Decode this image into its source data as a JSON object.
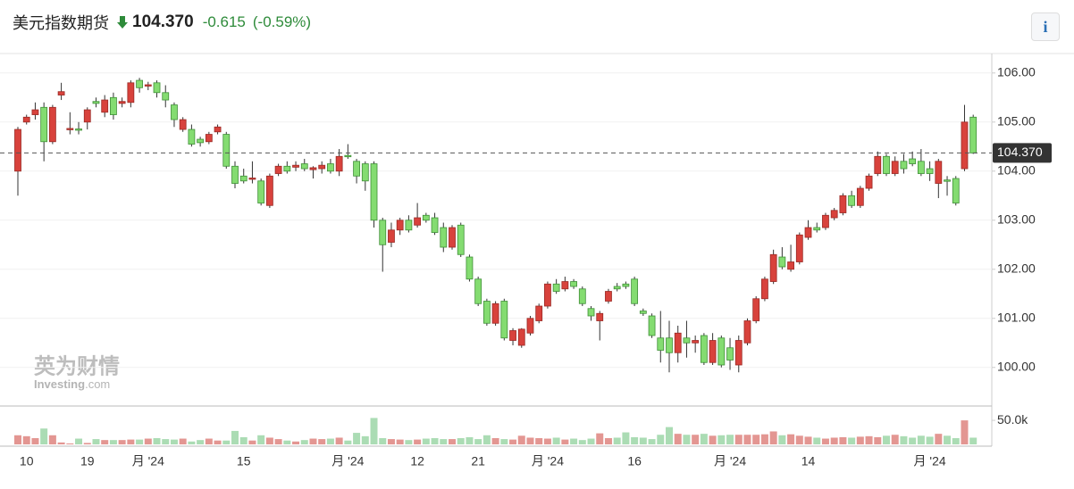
{
  "header": {
    "title": "美元指数期货",
    "price": "104.370",
    "change": "-0.615",
    "change_pct": "(-0.59%)",
    "info_button": "i"
  },
  "watermark": {
    "cn": "英为财情",
    "brand": "Investing",
    "suffix": ".com"
  },
  "chart_data": {
    "type": "candlestick",
    "colors": {
      "up": "#d8423c",
      "down": "#84dc71",
      "up_volume": "#e39692",
      "down_volume": "#abdcb4"
    },
    "last": {
      "value": 104.37,
      "label": "104.370"
    },
    "ylim": [
      99.25,
      106.36
    ],
    "yticks": [
      {
        "value": 100,
        "label": "100.00"
      },
      {
        "value": 101,
        "label": "101.00"
      },
      {
        "value": 102,
        "label": "102.00"
      },
      {
        "value": 103,
        "label": "103.00"
      },
      {
        "value": 104,
        "label": "104.00"
      },
      {
        "value": 105,
        "label": "105.00"
      },
      {
        "value": 106,
        "label": "106.00"
      }
    ],
    "categories": [
      null,
      "10",
      null,
      null,
      null,
      null,
      null,
      null,
      "19",
      null,
      null,
      null,
      null,
      null,
      null,
      "月 '24",
      null,
      null,
      null,
      null,
      null,
      null,
      null,
      null,
      null,
      null,
      "15",
      null,
      null,
      null,
      null,
      null,
      null,
      null,
      null,
      null,
      null,
      null,
      "月 '24",
      null,
      null,
      null,
      null,
      null,
      null,
      null,
      "12",
      null,
      null,
      null,
      null,
      null,
      null,
      "21",
      null,
      null,
      null,
      null,
      null,
      null,
      null,
      "月 '24",
      null,
      null,
      null,
      null,
      null,
      null,
      null,
      null,
      null,
      "16",
      null,
      null,
      null,
      null,
      null,
      null,
      null,
      null,
      null,
      null,
      "月 '24",
      null,
      null,
      null,
      null,
      null,
      null,
      null,
      null,
      "14",
      null,
      null,
      null,
      null,
      null,
      null,
      null,
      null,
      null,
      null,
      null,
      null,
      null,
      "月 '24",
      null,
      null,
      null,
      null,
      null
    ],
    "candles": [
      [
        104.0,
        104.9,
        103.5,
        104.85
      ],
      [
        105.0,
        105.15,
        104.95,
        105.1
      ],
      [
        105.15,
        105.4,
        105.05,
        105.25
      ],
      [
        105.3,
        105.4,
        104.2,
        104.6
      ],
      [
        104.6,
        105.35,
        104.55,
        105.3
      ],
      [
        105.55,
        105.8,
        105.45,
        105.62
      ],
      [
        104.85,
        105.2,
        104.75,
        104.87
      ],
      [
        104.86,
        105.0,
        104.75,
        104.85
      ],
      [
        105.0,
        105.3,
        104.85,
        105.25
      ],
      [
        105.42,
        105.5,
        105.3,
        105.38
      ],
      [
        105.2,
        105.55,
        105.1,
        105.45
      ],
      [
        105.5,
        105.6,
        105.05,
        105.15
      ],
      [
        105.38,
        105.5,
        105.3,
        105.42
      ],
      [
        105.4,
        105.85,
        105.3,
        105.8
      ],
      [
        105.85,
        105.9,
        105.6,
        105.7
      ],
      [
        105.74,
        105.82,
        105.65,
        105.76
      ],
      [
        105.8,
        105.85,
        105.5,
        105.6
      ],
      [
        105.6,
        105.75,
        105.3,
        105.45
      ],
      [
        105.35,
        105.4,
        104.9,
        105.05
      ],
      [
        104.85,
        105.1,
        104.8,
        105.05
      ],
      [
        104.85,
        104.95,
        104.5,
        104.55
      ],
      [
        104.65,
        104.7,
        104.5,
        104.58
      ],
      [
        104.6,
        104.8,
        104.55,
        104.75
      ],
      [
        104.8,
        104.95,
        104.75,
        104.9
      ],
      [
        104.75,
        104.8,
        104.05,
        104.1
      ],
      [
        104.1,
        104.2,
        103.65,
        103.75
      ],
      [
        103.9,
        104.05,
        103.75,
        103.8
      ],
      [
        103.85,
        104.2,
        103.75,
        103.86
      ],
      [
        103.8,
        103.85,
        103.3,
        103.35
      ],
      [
        103.3,
        103.95,
        103.25,
        103.9
      ],
      [
        103.95,
        104.15,
        103.9,
        104.1
      ],
      [
        104.1,
        104.2,
        103.95,
        104.0
      ],
      [
        104.08,
        104.2,
        104.0,
        104.12
      ],
      [
        104.15,
        104.25,
        104.0,
        104.05
      ],
      [
        104.03,
        104.1,
        103.85,
        104.07
      ],
      [
        104.05,
        104.2,
        103.95,
        104.12
      ],
      [
        104.15,
        104.25,
        103.95,
        104.0
      ],
      [
        104.0,
        104.45,
        103.9,
        104.3
      ],
      [
        104.32,
        104.55,
        104.25,
        104.3
      ],
      [
        104.2,
        104.25,
        103.75,
        103.9
      ],
      [
        104.15,
        104.2,
        103.6,
        103.8
      ],
      [
        104.15,
        104.2,
        102.85,
        103.0
      ],
      [
        103.0,
        103.05,
        101.95,
        102.5
      ],
      [
        102.55,
        102.95,
        102.45,
        102.8
      ],
      [
        102.8,
        103.05,
        102.7,
        103.0
      ],
      [
        103.0,
        103.1,
        102.75,
        102.8
      ],
      [
        102.9,
        103.35,
        102.85,
        103.05
      ],
      [
        103.1,
        103.15,
        102.95,
        103.0
      ],
      [
        103.05,
        103.15,
        102.7,
        102.75
      ],
      [
        102.85,
        102.95,
        102.35,
        102.45
      ],
      [
        102.45,
        102.9,
        102.4,
        102.85
      ],
      [
        102.9,
        102.95,
        102.25,
        102.3
      ],
      [
        102.25,
        102.3,
        101.75,
        101.8
      ],
      [
        101.8,
        101.85,
        101.25,
        101.3
      ],
      [
        101.35,
        101.4,
        100.85,
        100.9
      ],
      [
        100.9,
        101.35,
        100.85,
        101.3
      ],
      [
        101.35,
        101.4,
        100.55,
        100.6
      ],
      [
        100.55,
        100.8,
        100.45,
        100.75
      ],
      [
        100.45,
        100.8,
        100.4,
        100.78
      ],
      [
        100.7,
        101.05,
        100.65,
        101.0
      ],
      [
        100.95,
        101.3,
        100.9,
        101.25
      ],
      [
        101.25,
        101.75,
        101.2,
        101.7
      ],
      [
        101.7,
        101.8,
        101.5,
        101.55
      ],
      [
        101.6,
        101.85,
        101.55,
        101.75
      ],
      [
        101.75,
        101.8,
        101.6,
        101.65
      ],
      [
        101.6,
        101.65,
        101.25,
        101.3
      ],
      [
        101.2,
        101.25,
        100.95,
        101.05
      ],
      [
        100.95,
        101.15,
        100.55,
        101.1
      ],
      [
        101.35,
        101.6,
        101.3,
        101.55
      ],
      [
        101.65,
        101.72,
        101.55,
        101.6
      ],
      [
        101.7,
        101.75,
        101.6,
        101.65
      ],
      [
        101.8,
        101.85,
        101.25,
        101.3
      ],
      [
        101.15,
        101.2,
        101.05,
        101.1
      ],
      [
        101.05,
        101.1,
        100.6,
        100.65
      ],
      [
        100.6,
        101.15,
        100.1,
        100.35
      ],
      [
        100.6,
        100.95,
        99.9,
        100.3
      ],
      [
        100.3,
        100.85,
        100.1,
        100.7
      ],
      [
        100.6,
        100.95,
        100.2,
        100.5
      ],
      [
        100.5,
        100.65,
        100.3,
        100.55
      ],
      [
        100.65,
        100.7,
        100.05,
        100.1
      ],
      [
        100.1,
        100.7,
        100.05,
        100.55
      ],
      [
        100.6,
        100.65,
        100.0,
        100.05
      ],
      [
        100.4,
        100.6,
        99.95,
        100.15
      ],
      [
        100.05,
        100.65,
        99.9,
        100.55
      ],
      [
        100.5,
        101.0,
        100.45,
        100.95
      ],
      [
        100.95,
        101.45,
        100.9,
        101.4
      ],
      [
        101.4,
        101.85,
        101.35,
        101.8
      ],
      [
        101.75,
        102.4,
        101.7,
        102.3
      ],
      [
        102.25,
        102.45,
        102.0,
        102.05
      ],
      [
        102.0,
        102.5,
        101.95,
        102.15
      ],
      [
        102.15,
        102.75,
        102.1,
        102.7
      ],
      [
        102.65,
        103.0,
        102.6,
        102.85
      ],
      [
        102.85,
        102.95,
        102.75,
        102.8
      ],
      [
        102.85,
        103.15,
        102.8,
        103.1
      ],
      [
        103.05,
        103.25,
        103.0,
        103.2
      ],
      [
        103.15,
        103.55,
        103.1,
        103.5
      ],
      [
        103.5,
        103.6,
        103.25,
        103.3
      ],
      [
        103.3,
        103.7,
        103.25,
        103.65
      ],
      [
        103.65,
        103.95,
        103.6,
        103.9
      ],
      [
        103.95,
        104.4,
        103.9,
        104.3
      ],
      [
        104.3,
        104.35,
        103.9,
        103.95
      ],
      [
        103.95,
        104.3,
        103.9,
        104.2
      ],
      [
        104.2,
        104.35,
        103.95,
        104.05
      ],
      [
        104.25,
        104.4,
        104.1,
        104.15
      ],
      [
        104.2,
        104.45,
        103.9,
        103.95
      ],
      [
        104.05,
        104.2,
        103.8,
        103.95
      ],
      [
        103.75,
        104.25,
        103.45,
        104.2
      ],
      [
        103.82,
        103.9,
        103.5,
        103.8
      ],
      [
        103.85,
        103.9,
        103.3,
        103.35
      ],
      [
        104.05,
        105.35,
        104.0,
        105.0
      ],
      [
        105.1,
        105.15,
        104.35,
        104.37
      ]
    ],
    "volume": {
      "ylim": [
        0,
        78000
      ],
      "yticks": [
        {
          "value": 50000,
          "label": "50.0k"
        }
      ],
      "values": [
        19000,
        17000,
        13000,
        33000,
        19000,
        4000,
        2000,
        12000,
        3000,
        11000,
        9000,
        9000,
        9000,
        10000,
        10000,
        12000,
        13000,
        11000,
        10000,
        12000,
        6000,
        9000,
        12000,
        8000,
        8000,
        28000,
        15000,
        8000,
        19000,
        14000,
        11000,
        8000,
        6000,
        9000,
        12000,
        11000,
        12000,
        14000,
        8000,
        24000,
        17000,
        55000,
        13000,
        11000,
        10000,
        9000,
        10000,
        12000,
        13000,
        11000,
        11000,
        13000,
        15000,
        11000,
        19000,
        13000,
        11000,
        10000,
        18000,
        14000,
        13000,
        12000,
        14000,
        10000,
        12000,
        9000,
        12000,
        23000,
        13000,
        14000,
        25000,
        15000,
        14000,
        11000,
        20000,
        36000,
        22000,
        20000,
        20000,
        22000,
        18000,
        19000,
        20000,
        20000,
        20000,
        20000,
        21000,
        27000,
        19000,
        21000,
        18000,
        16000,
        14000,
        12000,
        14000,
        15000,
        14000,
        16000,
        17000,
        15000,
        18000,
        20000,
        17000,
        14000,
        18000,
        16000,
        22000,
        18000,
        13000,
        50000,
        14000
      ]
    }
  }
}
